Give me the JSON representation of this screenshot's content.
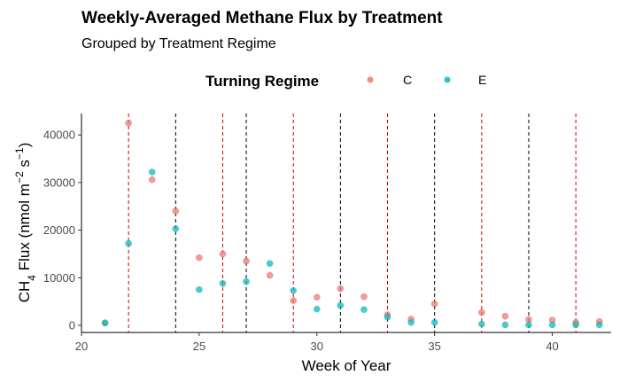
{
  "chart_data": {
    "type": "scatter",
    "title": "Weekly-Averaged Methane Flux by Treatment",
    "subtitle": "Grouped by Treatment Regime",
    "xlabel": "Week of Year",
    "ylabel": {
      "prefix": "CH",
      "sub": "4",
      "mid": " Flux (nmol m",
      "sup1": "−2",
      "gap": " s",
      "sup2": "−1",
      "suffix": ")"
    },
    "xlim": [
      20,
      42.5
    ],
    "ylim": [
      -1500,
      44500
    ],
    "x_ticks": [
      20,
      25,
      30,
      35,
      40
    ],
    "y_ticks": [
      0,
      10000,
      20000,
      30000,
      40000
    ],
    "grid": false,
    "legend": {
      "title": "Turning Regime",
      "position": "top"
    },
    "series": [
      {
        "name": "C",
        "color": "#F8766D",
        "points": [
          [
            21,
            500
          ],
          [
            22,
            42500
          ],
          [
            23,
            30600
          ],
          [
            24,
            24000
          ],
          [
            25,
            14200
          ],
          [
            26,
            15000
          ],
          [
            27,
            13500
          ],
          [
            28,
            10500
          ],
          [
            29,
            5200
          ],
          [
            30,
            5900
          ],
          [
            31,
            7700
          ],
          [
            32,
            6000
          ],
          [
            33,
            2200
          ],
          [
            34,
            1300
          ],
          [
            35,
            4500
          ],
          [
            37,
            2700
          ],
          [
            38,
            1900
          ],
          [
            39,
            1200
          ],
          [
            40,
            1100
          ],
          [
            41,
            600
          ],
          [
            42,
            800
          ]
        ]
      },
      {
        "name": "E",
        "color": "#00BFC4",
        "points": [
          [
            21,
            500
          ],
          [
            22,
            17200
          ],
          [
            23,
            32200
          ],
          [
            24,
            20300
          ],
          [
            25,
            7500
          ],
          [
            26,
            8800
          ],
          [
            27,
            9200
          ],
          [
            28,
            13000
          ],
          [
            29,
            7300
          ],
          [
            30,
            3400
          ],
          [
            31,
            4200
          ],
          [
            32,
            3300
          ],
          [
            33,
            1700
          ],
          [
            34,
            600
          ],
          [
            35,
            600
          ],
          [
            37,
            300
          ],
          [
            38,
            100
          ],
          [
            39,
            100
          ],
          [
            40,
            100
          ],
          [
            41,
            100
          ],
          [
            42,
            100
          ]
        ]
      }
    ],
    "vlines": [
      {
        "x": 22,
        "color": "#CC0000"
      },
      {
        "x": 24,
        "color": "#000000"
      },
      {
        "x": 26,
        "color": "#CC0000"
      },
      {
        "x": 27,
        "color": "#000000"
      },
      {
        "x": 29,
        "color": "#CC0000"
      },
      {
        "x": 31,
        "color": "#000000"
      },
      {
        "x": 33,
        "color": "#CC0000"
      },
      {
        "x": 35,
        "color": "#000000"
      },
      {
        "x": 37,
        "color": "#CC0000"
      },
      {
        "x": 39,
        "color": "#000000"
      },
      {
        "x": 41,
        "color": "#CC0000"
      }
    ]
  }
}
